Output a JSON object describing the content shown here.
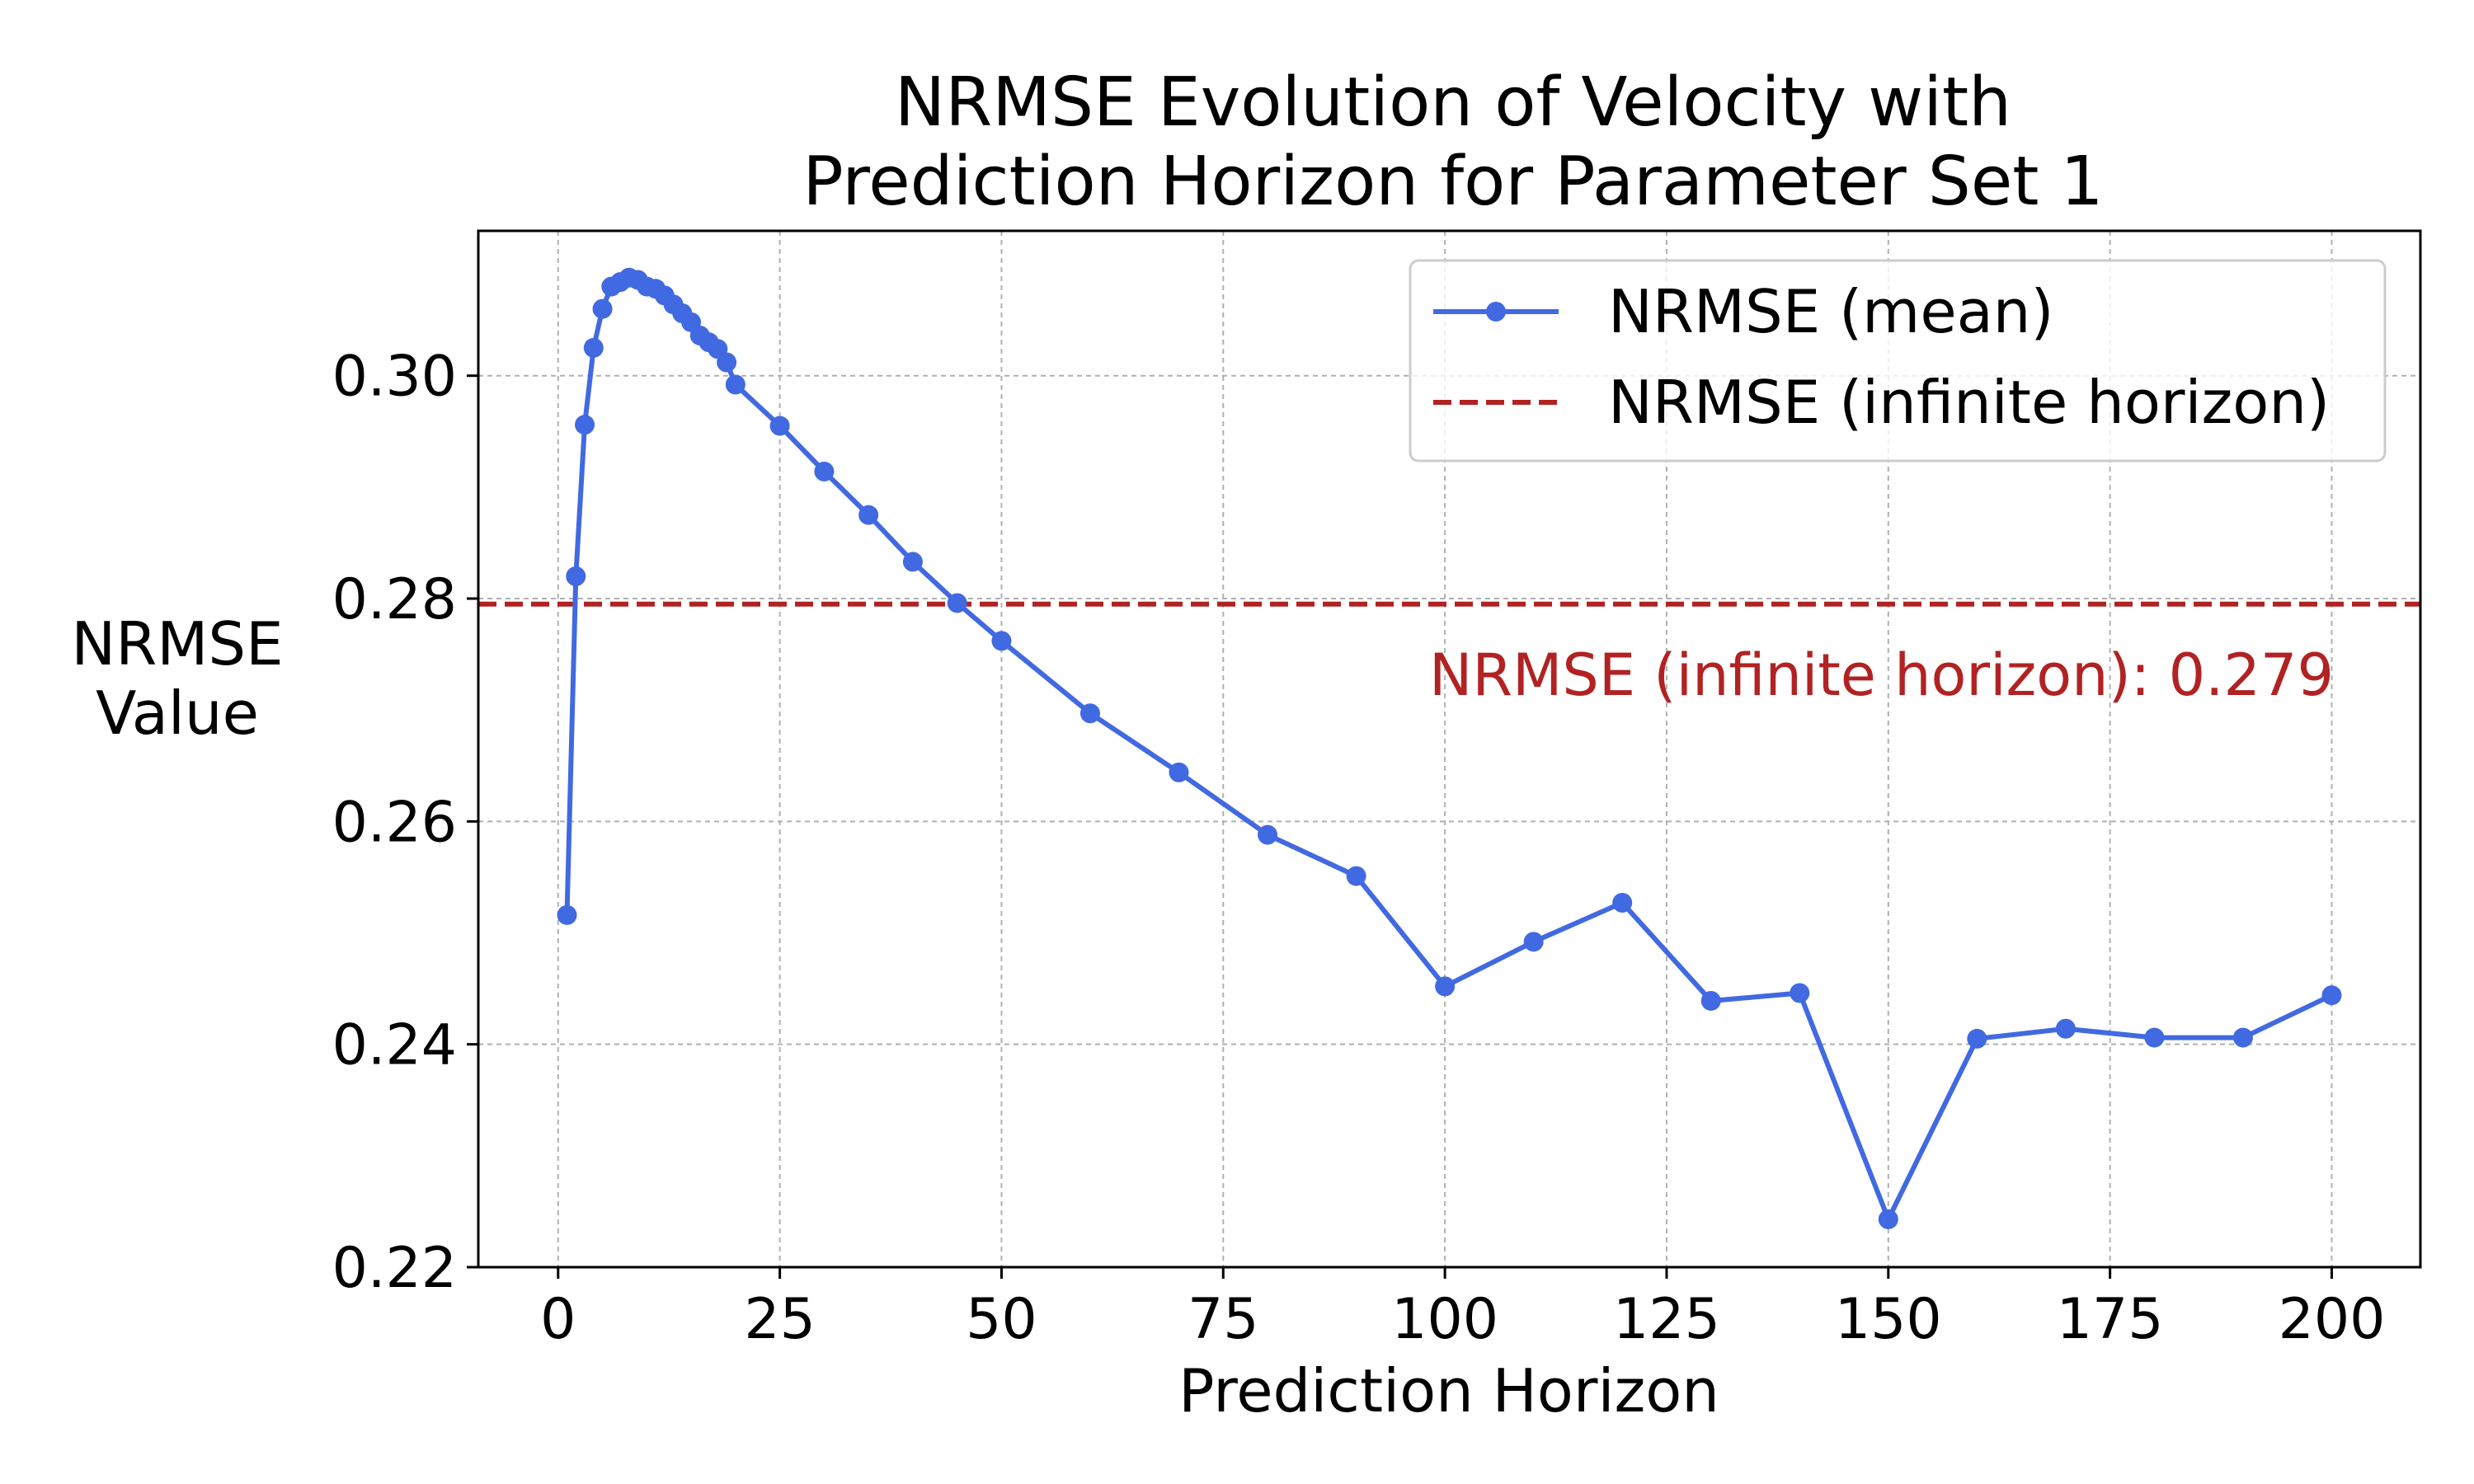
{
  "chart_data": {
    "type": "line",
    "title": "NRMSE Evolution of Velocity with Prediction Horizon for Parameter Set 1",
    "title_lines": [
      "NRMSE Evolution of Velocity with",
      "Prediction Horizon for Parameter Set 1"
    ],
    "xlabel": "Prediction Horizon",
    "ylabel": "NRMSE Value",
    "ylabel_lines": [
      "NRMSE",
      "Value"
    ],
    "xlim": [
      -9,
      210
    ],
    "ylim": [
      0.22,
      0.313
    ],
    "x_ticks": [
      0,
      25,
      50,
      75,
      100,
      125,
      150,
      175,
      200
    ],
    "y_ticks": [
      0.22,
      0.24,
      0.26,
      0.28,
      0.3
    ],
    "y_tick_labels": [
      "0.22",
      "0.24",
      "0.26",
      "0.28",
      "0.30"
    ],
    "grid": true,
    "legend_position": "top-right",
    "series": [
      {
        "name": "NRMSE (mean)",
        "color": "#4169e1",
        "style": "solid-with-markers",
        "x": [
          1,
          2,
          3,
          4,
          5,
          6,
          7,
          8,
          9,
          10,
          11,
          12,
          13,
          14,
          15,
          16,
          17,
          18,
          19,
          20,
          25,
          30,
          35,
          40,
          45,
          50,
          60,
          70,
          80,
          90,
          100,
          110,
          120,
          130,
          140,
          150,
          160,
          170,
          180,
          190,
          200
        ],
        "y": [
          0.2516,
          0.282,
          0.2956,
          0.3025,
          0.306,
          0.308,
          0.3084,
          0.3088,
          0.3086,
          0.308,
          0.3078,
          0.3072,
          0.3064,
          0.3056,
          0.3048,
          0.3036,
          0.303,
          0.3024,
          0.3012,
          0.2992,
          0.2955,
          0.2914,
          0.2875,
          0.2833,
          0.2796,
          0.2762,
          0.2697,
          0.2644,
          0.2588,
          0.2551,
          0.2452,
          0.2492,
          0.2527,
          0.2439,
          0.2446,
          0.2243,
          0.2405,
          0.2414,
          0.2406,
          0.2406,
          0.2444
        ]
      },
      {
        "name": "NRMSE (infinite horizon)",
        "color": "#b22222",
        "style": "dashed",
        "value": 0.2795
      }
    ],
    "annotation": {
      "text": "NRMSE (infinite horizon): 0.279",
      "color": "#b22222"
    }
  }
}
